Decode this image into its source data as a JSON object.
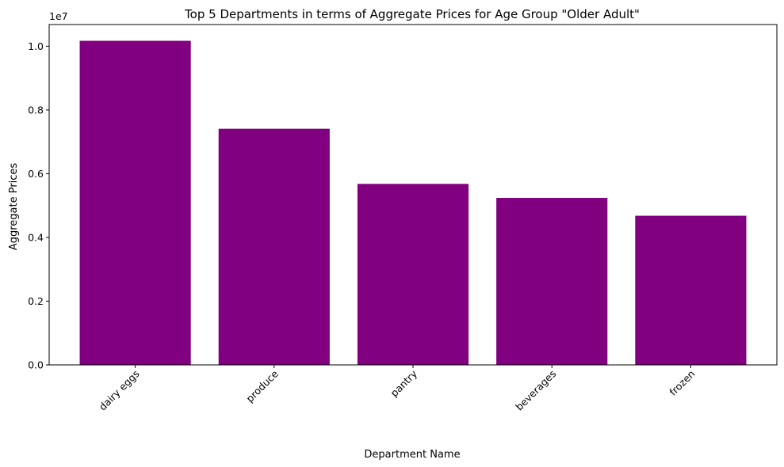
{
  "chart_data": {
    "type": "bar",
    "title": "Top 5 Departments in terms of Aggregate Prices for Age Group \"Older Adult\"",
    "xlabel": "Department Name",
    "ylabel": "Aggregate Prices",
    "categories": [
      "dairy eggs",
      "produce",
      "pantry",
      "beverages",
      "frozen"
    ],
    "values": [
      10170000,
      7410000,
      5680000,
      5240000,
      4680000
    ],
    "ylim": [
      0,
      10680000
    ],
    "y_ticks": [
      0,
      2000000,
      4000000,
      6000000,
      8000000,
      10000000
    ],
    "y_tick_labels": [
      "0.0",
      "0.2",
      "0.4",
      "0.6",
      "0.8",
      "1.0"
    ],
    "y_offset_label": "1e7",
    "bar_color": "#800080",
    "grid": false,
    "x_tick_rotation": -45
  }
}
